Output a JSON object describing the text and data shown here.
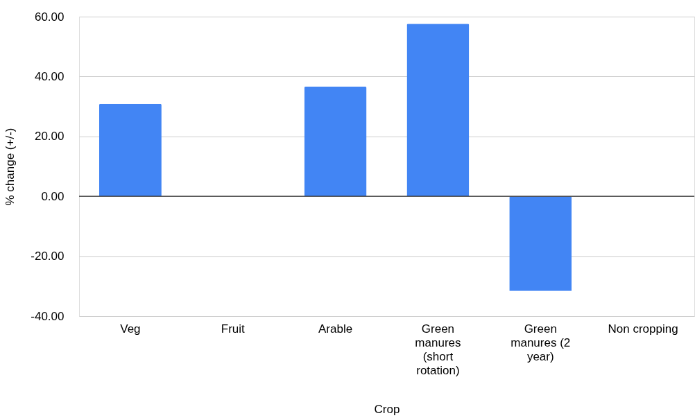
{
  "chart_data": {
    "type": "bar",
    "xlabel": "Crop",
    "ylabel": "% change (+/-)",
    "categories": [
      "Veg",
      "Fruit",
      "Arable",
      "Green manures (short rotation)",
      "Green manures (2 year)",
      "Non cropping"
    ],
    "series": [
      {
        "color": "#4285f4",
        "values": [
          30.9,
          0,
          36.6,
          57.6,
          -31.6,
          0
        ]
      }
    ],
    "ylim": [
      -40,
      60
    ],
    "yticks": [
      {
        "value": -40,
        "label": "-40.00"
      },
      {
        "value": -20,
        "label": "-20.00"
      },
      {
        "value": 0,
        "label": "0.00"
      },
      {
        "value": 20,
        "label": "20.00"
      },
      {
        "value": 40,
        "label": "40.00"
      },
      {
        "value": 60,
        "label": "60.00"
      }
    ],
    "grid": "y"
  }
}
